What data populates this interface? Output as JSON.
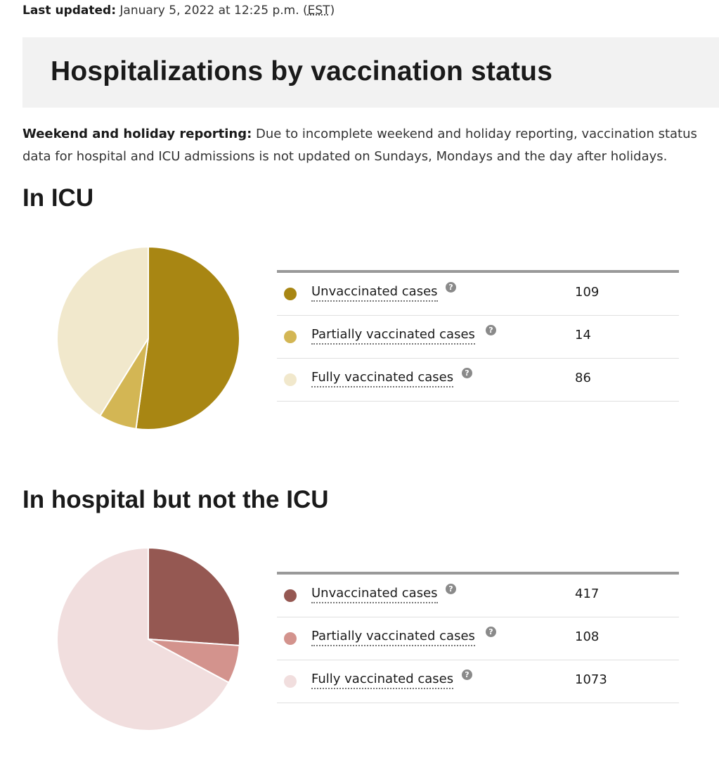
{
  "header": {
    "updated_label": "Last updated:",
    "updated_value": "January 5, 2022 at 12:25 p.m. (",
    "updated_tz": "EST",
    "updated_close": ")"
  },
  "page_title": "Hospitalizations by vaccination status",
  "note": {
    "label": "Weekend and holiday reporting:",
    "text": " Due to incomplete weekend and holiday reporting, vaccination status data for hospital and ICU admissions is not updated on Sundays, Mondays and the day after holidays."
  },
  "help_icon_glyph": "?",
  "chart_data": [
    {
      "type": "pie",
      "title": "In ICU",
      "categories": [
        "Unvaccinated cases",
        "Partially vaccinated cases",
        "Fully vaccinated cases"
      ],
      "values": [
        109,
        14,
        86
      ],
      "value_labels": [
        "109",
        "14",
        "86"
      ],
      "colors": [
        "#a88613",
        "#d3b654",
        "#f1e8cc"
      ],
      "legend_placement": "right"
    },
    {
      "type": "pie",
      "title": "In hospital but not the ICU",
      "categories": [
        "Unvaccinated cases",
        "Partially vaccinated cases",
        "Fully vaccinated cases"
      ],
      "values": [
        417,
        108,
        1073
      ],
      "value_labels": [
        "417",
        "108",
        "1073"
      ],
      "colors": [
        "#955852",
        "#d3938d",
        "#f1dede"
      ],
      "legend_placement": "right"
    }
  ]
}
